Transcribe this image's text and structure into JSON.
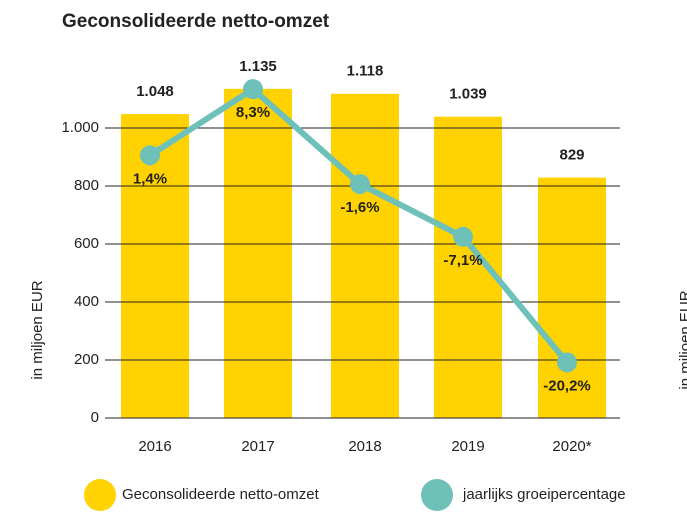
{
  "chart_data": {
    "type": "bar-line",
    "title": "Geconsolideerde netto-omzet",
    "ylabel": "in miljoen EUR",
    "categories": [
      "2016",
      "2017",
      "2018",
      "2019",
      "2020*"
    ],
    "series": [
      {
        "name": "Geconsolideerde netto-omzet",
        "color": "#ffd200",
        "type": "bar",
        "values": [
          1048,
          1135,
          1118,
          1039,
          829
        ],
        "value_labels": [
          "1.048",
          "1.135",
          "1.118",
          "1.039",
          "829"
        ]
      },
      {
        "name": "jaarlijks groeipercentage",
        "color": "#6ec1b8",
        "type": "line",
        "axis": "y2",
        "values": [
          1.4,
          8.3,
          -1.6,
          -7.1,
          -20.2
        ],
        "value_labels": [
          "1,4%",
          "8,3%",
          "-1,6%",
          "-7,1%",
          "-20,2%"
        ]
      }
    ],
    "ylim": [
      0,
      1200
    ],
    "yticks": [
      0,
      200,
      400,
      600,
      800,
      {
        "value": 1000,
        "label": "1.000"
      }
    ],
    "y2lim": [
      -26,
      10.3
    ],
    "grid": true
  }
}
